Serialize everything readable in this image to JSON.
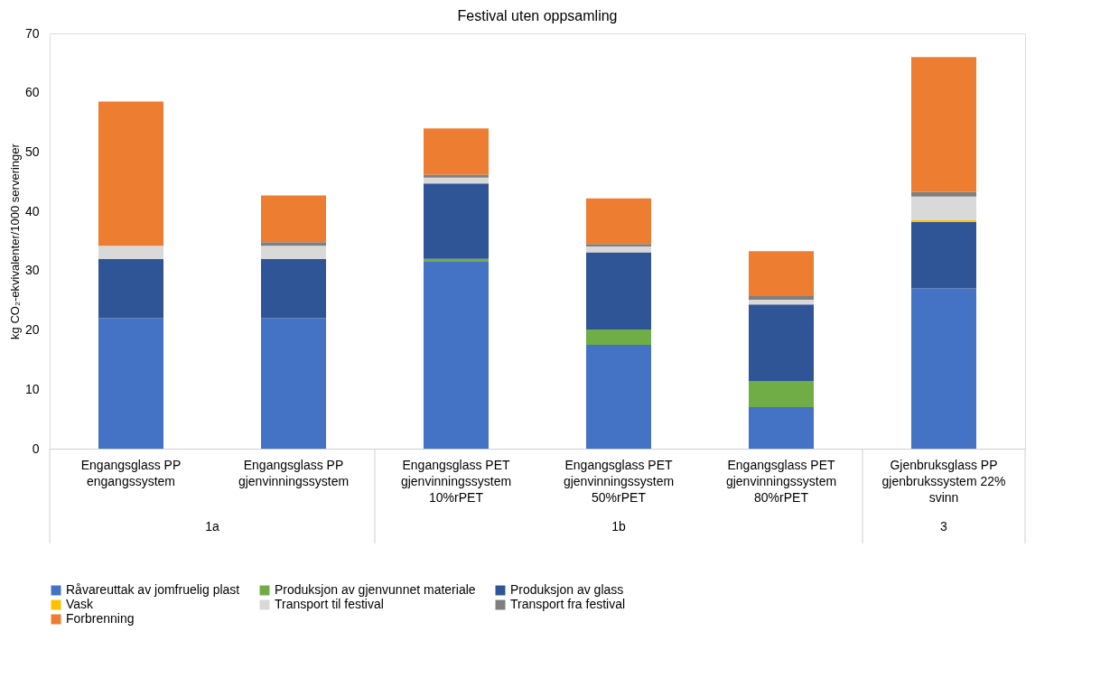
{
  "chart_data": {
    "type": "bar",
    "stacked": true,
    "title": "Festival uten oppsamling",
    "ylabel": "kg CO₂-ekvivalenter/1000 serveringer",
    "categories": [
      "Engangsglass PP engangssystem",
      "Engangsglass PP gjenvinningssystem",
      "Engangsglass PET gjenvinningssystem 10%rPET",
      "Engangsglass PET gjenvinningssystem 50%rPET",
      "Engangsglass PET gjenvinningssystem 80%rPET",
      "Gjenbruksglass PP gjenbrukssystem 22% svinn"
    ],
    "series": [
      {
        "name": "Råvareuttak av jomfruelig plast",
        "color": "#4472c4",
        "values": [
          22,
          22,
          31.5,
          17.5,
          7.0,
          27
        ]
      },
      {
        "name": "Produksjon av gjenvunnet materiale",
        "color": "#70ad47",
        "values": [
          0,
          0,
          0.5,
          2.6,
          4.4,
          0
        ]
      },
      {
        "name": "Produksjon av glass",
        "color": "#2f5597",
        "values": [
          10,
          10,
          12.7,
          13,
          12.9,
          11.2
        ]
      },
      {
        "name": "Vask",
        "color": "#ffc000",
        "values": [
          0,
          0,
          0,
          0,
          0,
          0.3
        ]
      },
      {
        "name": "Transport til festival",
        "color": "#d9d9d9",
        "values": [
          2.2,
          2.2,
          1.0,
          1.0,
          0.8,
          4.0
        ]
      },
      {
        "name": "Transport fra festival",
        "color": "#7f7f7f",
        "values": [
          0,
          0.6,
          0.5,
          0.4,
          0.6,
          0.8
        ]
      },
      {
        "name": "Forbrenning",
        "color": "#ed7d31",
        "values": [
          24.3,
          7.9,
          7.8,
          7.7,
          7.6,
          22.7
        ]
      }
    ],
    "ylim": [
      0,
      70
    ],
    "yticks": [
      0,
      10,
      20,
      30,
      40,
      50,
      60,
      70
    ],
    "legend": "bottom",
    "annotations": [
      "1a",
      "1b",
      "3"
    ]
  }
}
